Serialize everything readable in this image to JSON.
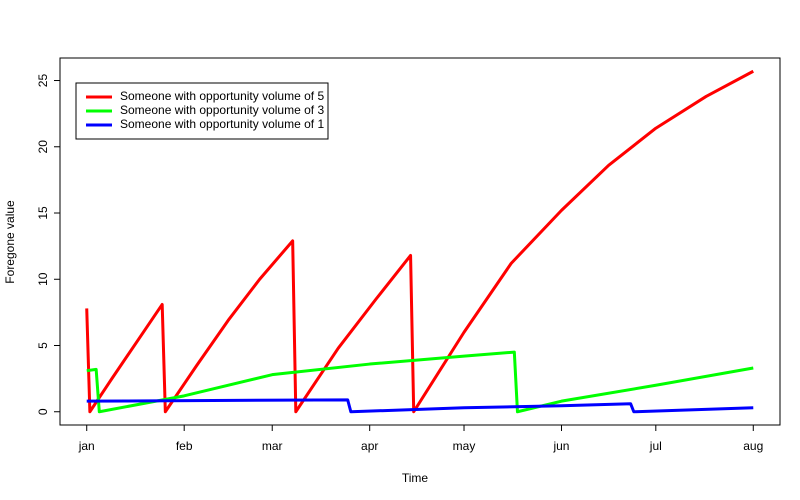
{
  "chart_data": {
    "type": "line",
    "x_label": "Time",
    "y_label": "Foregone value",
    "xlim": [
      -8.5,
      220.5
    ],
    "ylim": [
      -1,
      26.7
    ],
    "xticks": [
      {
        "value": 0,
        "label": "jan"
      },
      {
        "value": 31,
        "label": "feb"
      },
      {
        "value": 59,
        "label": "mar"
      },
      {
        "value": 90,
        "label": "apr"
      },
      {
        "value": 120,
        "label": "may"
      },
      {
        "value": 151,
        "label": "jun"
      },
      {
        "value": 181,
        "label": "jul"
      },
      {
        "value": 212,
        "label": "aug"
      }
    ],
    "yticks": [
      0,
      5,
      10,
      15,
      20,
      25
    ],
    "legend": "top-left",
    "series": [
      {
        "name": "Someone with opportunity volume of 5",
        "color": "#ff0000",
        "x": [
          0,
          1,
          8,
          16,
          24,
          25,
          35,
          45,
          55,
          65.5,
          66.5,
          80,
          92,
          103,
          104,
          120,
          135,
          151,
          166,
          181,
          197,
          212
        ],
        "values": [
          7.8,
          0,
          2.5,
          5.3,
          8.1,
          0,
          3.5,
          6.9,
          10.0,
          12.9,
          0,
          4.8,
          8.5,
          11.8,
          0,
          6.0,
          11.2,
          15.2,
          18.6,
          21.4,
          23.8,
          25.7
        ]
      },
      {
        "name": "Someone with opportunity volume of 3",
        "color": "#00ff00",
        "x": [
          0,
          3,
          4,
          31,
          59,
          90,
          120,
          136,
          137,
          151,
          181,
          212
        ],
        "values": [
          3.1,
          3.2,
          0,
          1.2,
          2.8,
          3.6,
          4.2,
          4.5,
          0,
          0.8,
          2.0,
          3.3
        ]
      },
      {
        "name": "Someone with opportunity volume of 1",
        "color": "#0000ff",
        "x": [
          0,
          83,
          84,
          120,
          151,
          173,
          174,
          212
        ],
        "values": [
          0.8,
          0.9,
          0,
          0.3,
          0.45,
          0.6,
          0,
          0.3
        ]
      }
    ]
  }
}
